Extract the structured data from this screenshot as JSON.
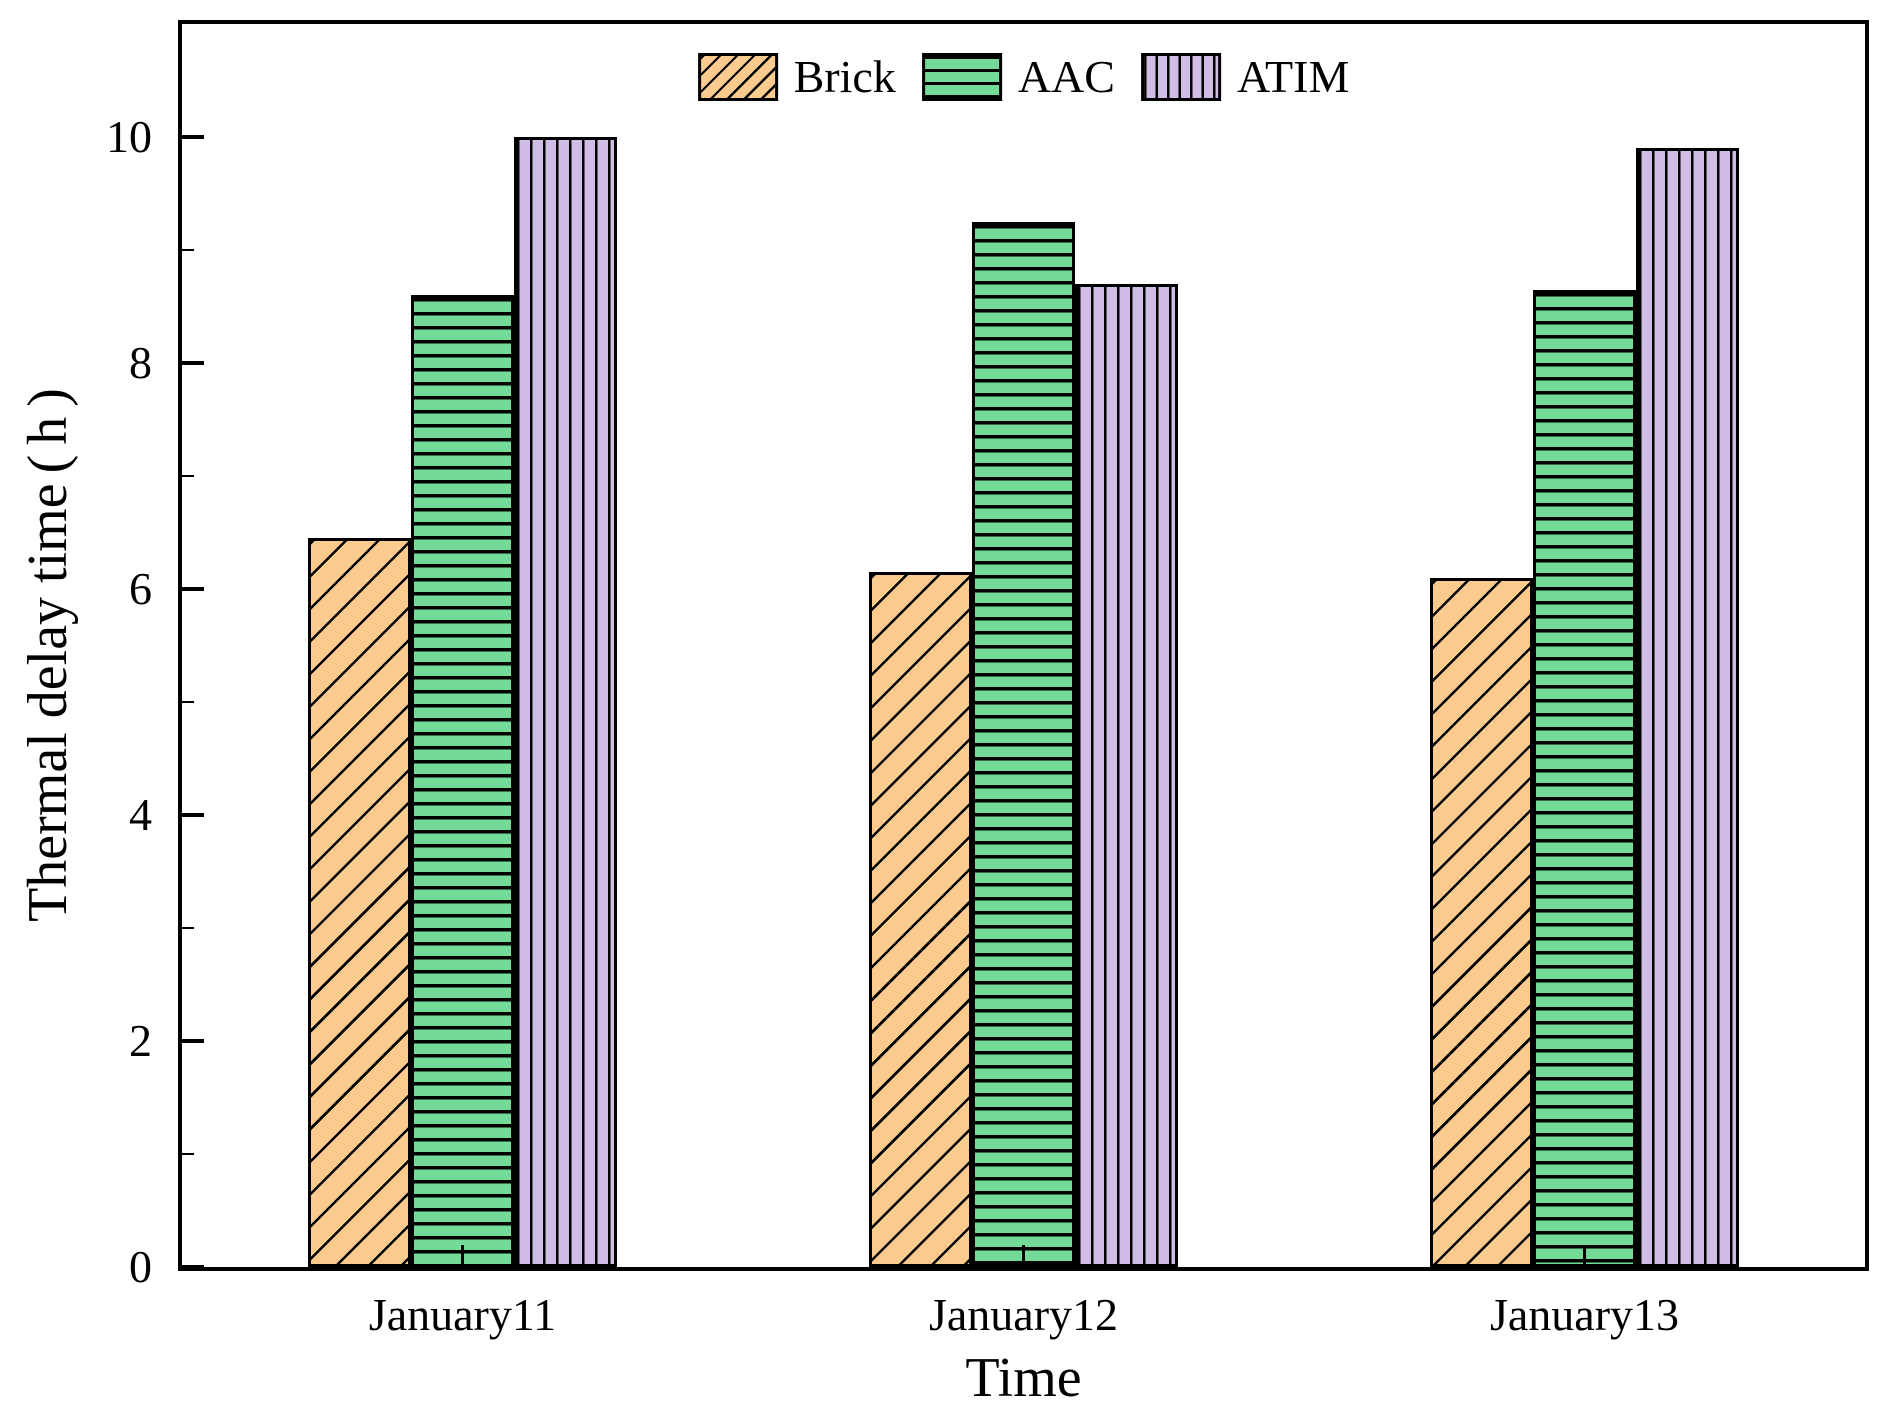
{
  "figure": {
    "background": "#ffffff",
    "frame_color": "#000000"
  },
  "chart_data": {
    "type": "bar",
    "title": "",
    "categories": [
      "January11",
      "January12",
      "January13"
    ],
    "series": [
      {
        "name": "Brick",
        "values": [
          6.45,
          6.15,
          6.1
        ],
        "fill": "#FACA8F",
        "hatch": "diagonal"
      },
      {
        "name": "AAC",
        "values": [
          8.6,
          9.25,
          8.65
        ],
        "fill": "#73DB97",
        "hatch": "horizontal"
      },
      {
        "name": "ATIM",
        "values": [
          10.0,
          8.7,
          9.9
        ],
        "fill": "#CFBDE5",
        "hatch": "vertical"
      }
    ],
    "xlabel": "Time",
    "ylabel": "Thermal delay time（h）",
    "ylim": [
      0,
      11
    ],
    "yticks_major": [
      0,
      2,
      4,
      6,
      8,
      10
    ],
    "yticks_minor": [
      1,
      3,
      5,
      7,
      9
    ],
    "grid": false,
    "legend_position": "top-center",
    "bar_edge_color": "#000000"
  }
}
